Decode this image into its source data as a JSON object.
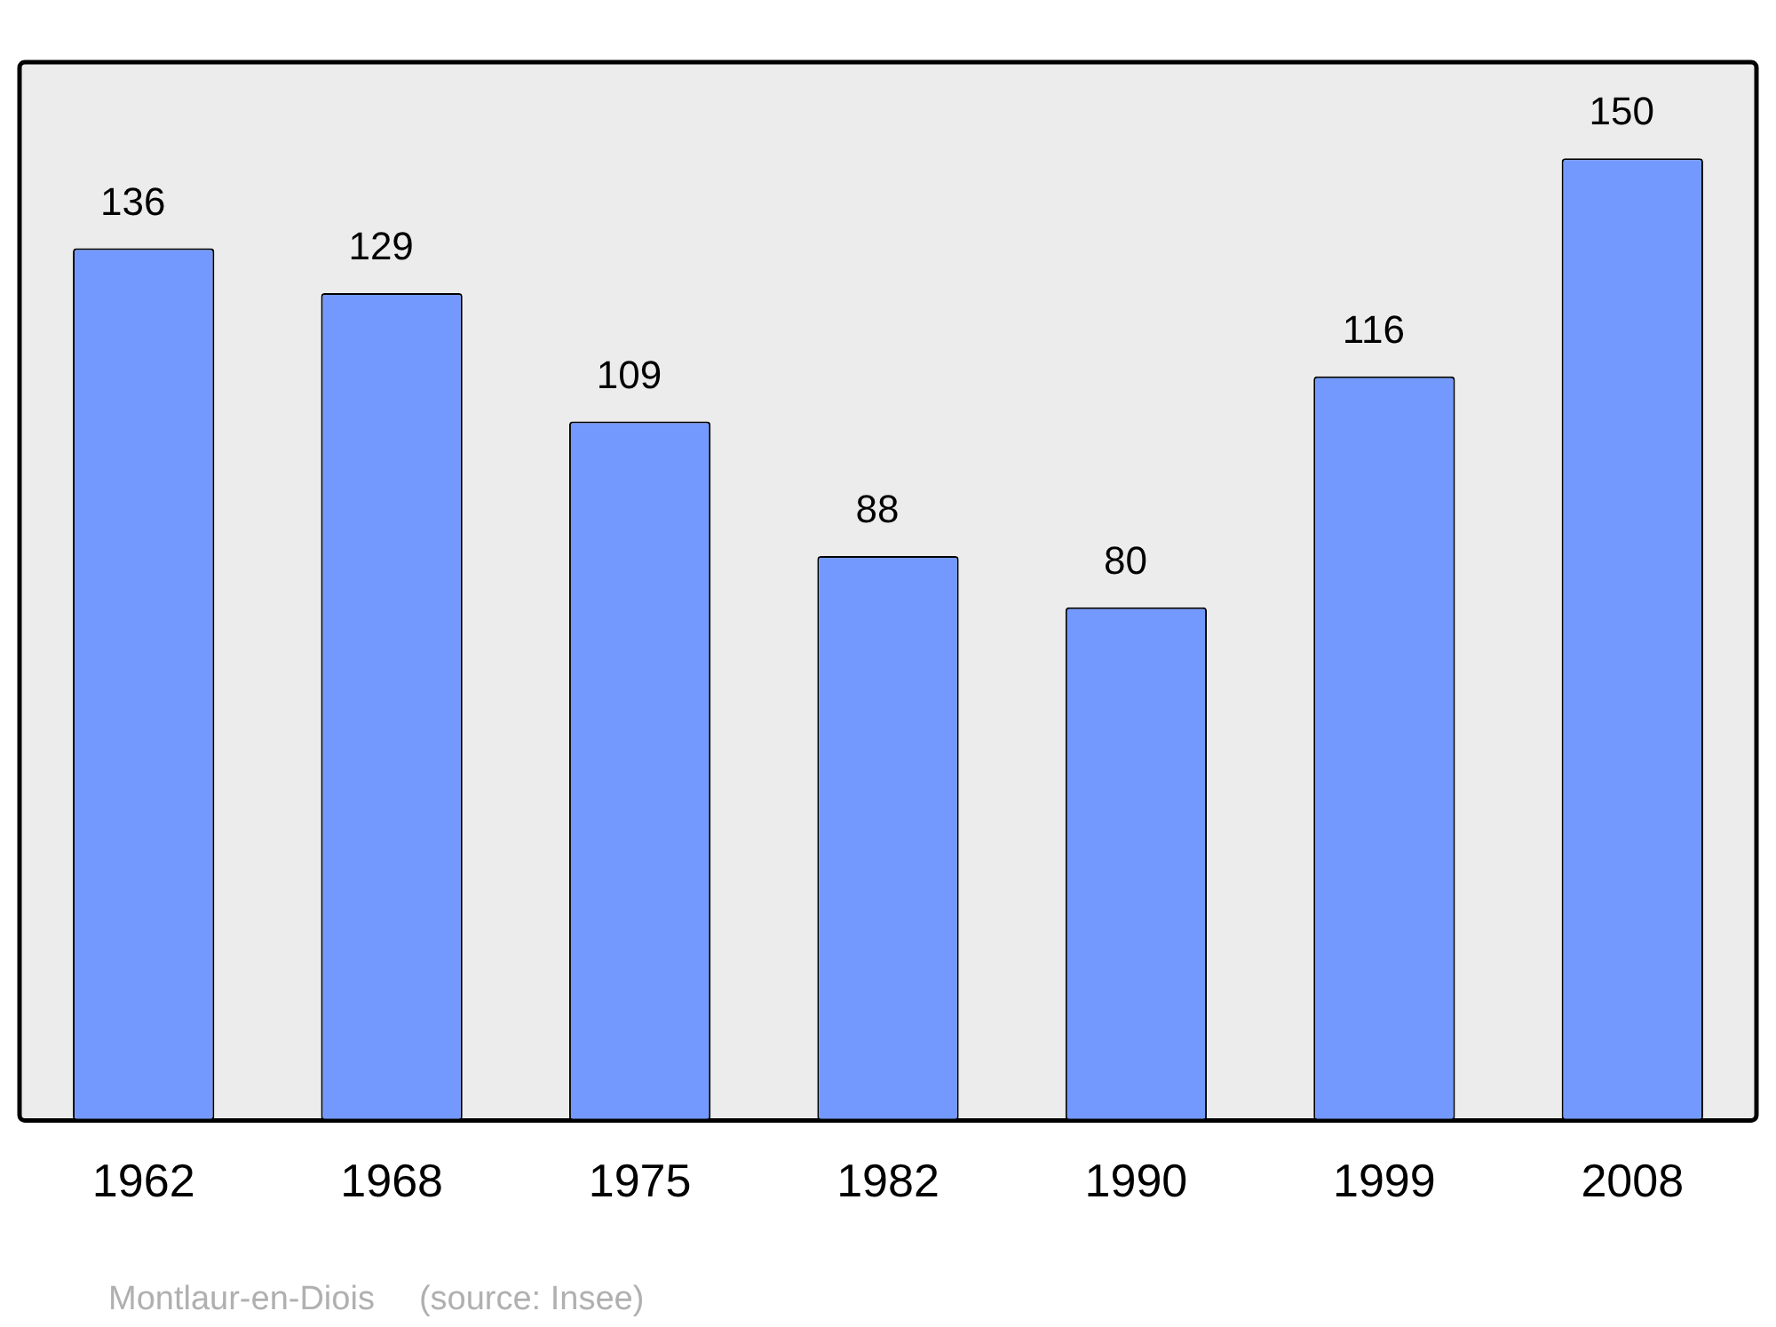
{
  "chart_data": {
    "type": "bar",
    "categories": [
      "1962",
      "1968",
      "1975",
      "1982",
      "1990",
      "1999",
      "2008"
    ],
    "values": [
      136,
      129,
      109,
      88,
      80,
      116,
      150
    ],
    "color": "#7399ff",
    "ylim": [
      0,
      165
    ],
    "tick_labels": "x",
    "data_labels": true,
    "grid": false,
    "legend": false,
    "annotations": [
      "Montlaur-en-Diois",
      "(source: Insee)"
    ]
  }
}
